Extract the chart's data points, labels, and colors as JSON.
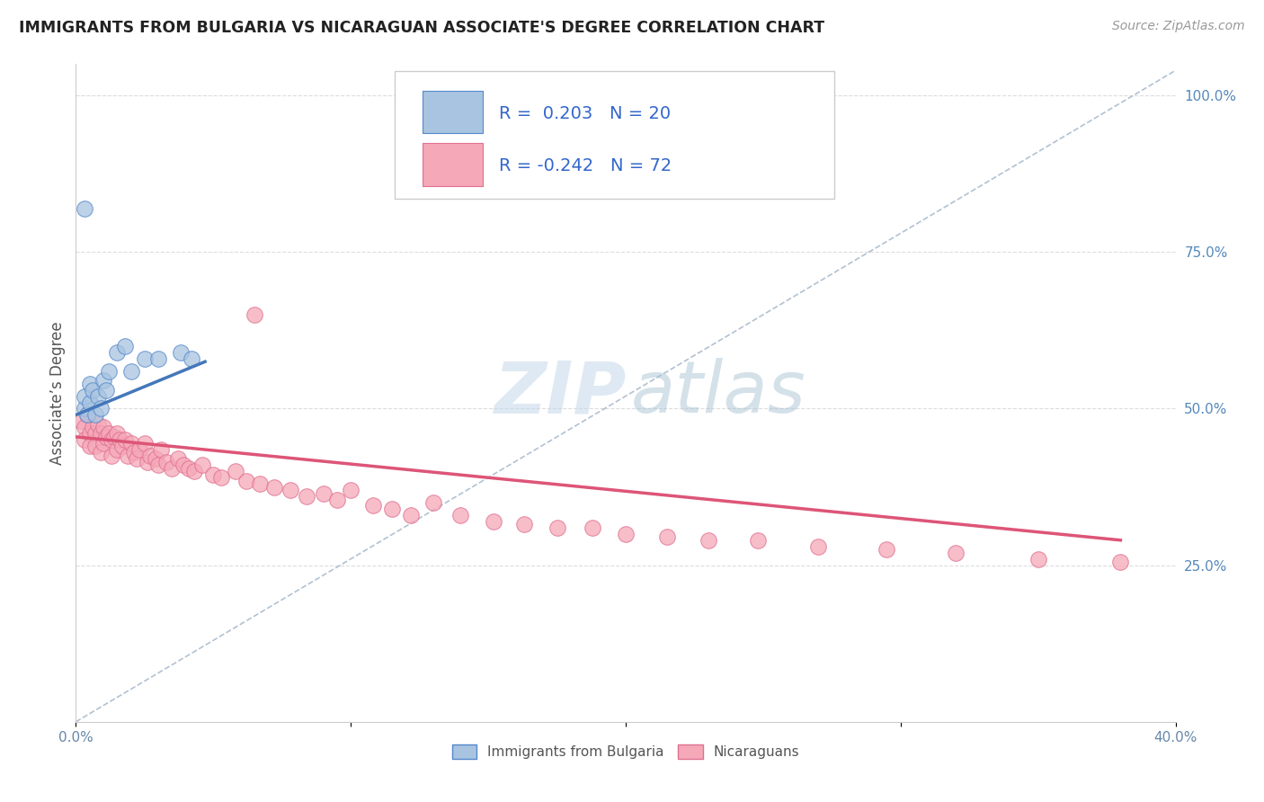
{
  "title": "IMMIGRANTS FROM BULGARIA VS NICARAGUAN ASSOCIATE'S DEGREE CORRELATION CHART",
  "source_text": "Source: ZipAtlas.com",
  "ylabel": "Associate’s Degree",
  "legend_entry1": "Immigrants from Bulgaria",
  "legend_entry2": "Nicaraguans",
  "r1": 0.203,
  "n1": 20,
  "r2": -0.242,
  "n2": 72,
  "xlim": [
    0.0,
    0.4
  ],
  "ylim": [
    0.0,
    1.05
  ],
  "yticks_right": [
    0.25,
    0.5,
    0.75,
    1.0
  ],
  "ytick_labels_right": [
    "25.0%",
    "50.0%",
    "75.0%",
    "100.0%"
  ],
  "color_blue_fill": "#A8C4E0",
  "color_blue_edge": "#5588CC",
  "color_pink_fill": "#F5A8B8",
  "color_pink_edge": "#E07090",
  "color_line_blue": "#4477BB",
  "color_line_pink": "#DD5577",
  "color_dashed": "#AABBCC",
  "color_grid": "#DDDDDD",
  "blue_x": [
    0.003,
    0.003,
    0.004,
    0.005,
    0.005,
    0.006,
    0.007,
    0.008,
    0.009,
    0.01,
    0.011,
    0.012,
    0.015,
    0.018,
    0.02,
    0.025,
    0.03,
    0.038,
    0.042,
    0.003
  ],
  "blue_y": [
    0.5,
    0.52,
    0.49,
    0.54,
    0.51,
    0.53,
    0.49,
    0.52,
    0.5,
    0.545,
    0.53,
    0.56,
    0.59,
    0.6,
    0.56,
    0.58,
    0.58,
    0.59,
    0.58,
    0.82
  ],
  "blue_trend_x": [
    0.0,
    0.047
  ],
  "blue_trend_y": [
    0.49,
    0.575
  ],
  "pink_x": [
    0.002,
    0.003,
    0.003,
    0.004,
    0.005,
    0.005,
    0.006,
    0.007,
    0.007,
    0.008,
    0.009,
    0.009,
    0.01,
    0.01,
    0.011,
    0.012,
    0.013,
    0.013,
    0.014,
    0.015,
    0.015,
    0.016,
    0.017,
    0.018,
    0.019,
    0.02,
    0.021,
    0.022,
    0.023,
    0.025,
    0.026,
    0.027,
    0.029,
    0.03,
    0.031,
    0.033,
    0.035,
    0.037,
    0.039,
    0.041,
    0.043,
    0.046,
    0.05,
    0.053,
    0.058,
    0.062,
    0.067,
    0.072,
    0.078,
    0.084,
    0.09,
    0.095,
    0.1,
    0.108,
    0.115,
    0.122,
    0.13,
    0.14,
    0.152,
    0.163,
    0.175,
    0.188,
    0.2,
    0.215,
    0.23,
    0.248,
    0.27,
    0.295,
    0.32,
    0.35,
    0.38,
    0.065
  ],
  "pink_y": [
    0.48,
    0.47,
    0.45,
    0.49,
    0.46,
    0.44,
    0.47,
    0.46,
    0.44,
    0.475,
    0.46,
    0.43,
    0.47,
    0.445,
    0.455,
    0.46,
    0.45,
    0.425,
    0.455,
    0.46,
    0.435,
    0.45,
    0.44,
    0.45,
    0.425,
    0.445,
    0.43,
    0.42,
    0.435,
    0.445,
    0.415,
    0.425,
    0.42,
    0.41,
    0.435,
    0.415,
    0.405,
    0.42,
    0.41,
    0.405,
    0.4,
    0.41,
    0.395,
    0.39,
    0.4,
    0.385,
    0.38,
    0.375,
    0.37,
    0.36,
    0.365,
    0.355,
    0.37,
    0.345,
    0.34,
    0.33,
    0.35,
    0.33,
    0.32,
    0.315,
    0.31,
    0.31,
    0.3,
    0.295,
    0.29,
    0.29,
    0.28,
    0.275,
    0.27,
    0.26,
    0.255,
    0.65
  ],
  "pink_trend_x": [
    0.0,
    0.38
  ],
  "pink_trend_y": [
    0.455,
    0.29
  ]
}
